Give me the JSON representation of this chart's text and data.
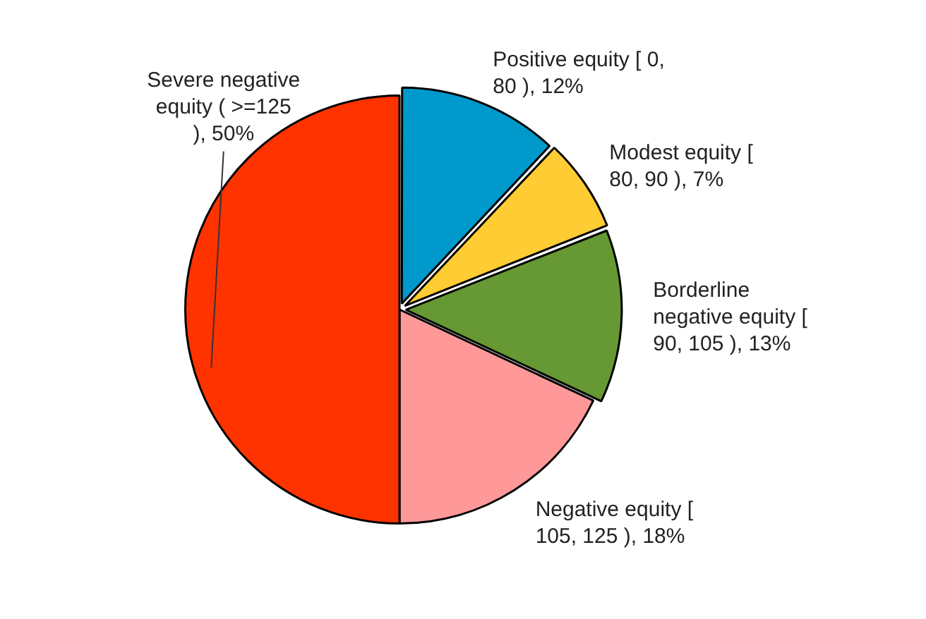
{
  "chart_data": {
    "type": "pie",
    "categories": [
      "Positive equity [ 0, 80 )",
      "Modest equity [ 80, 90 )",
      "Borderline negative equity [ 90, 105 )",
      "Negative equity [ 105, 125 )",
      "Severe negative equity ( >=125 )"
    ],
    "values": [
      12,
      7,
      13,
      18,
      50
    ],
    "value_labels": [
      "12%",
      "7%",
      "13%",
      "18%",
      "50%"
    ],
    "colors": [
      "#0099cc",
      "#ffcc33",
      "#669933",
      "#ff9999",
      "#ff3300"
    ],
    "legend": false
  }
}
